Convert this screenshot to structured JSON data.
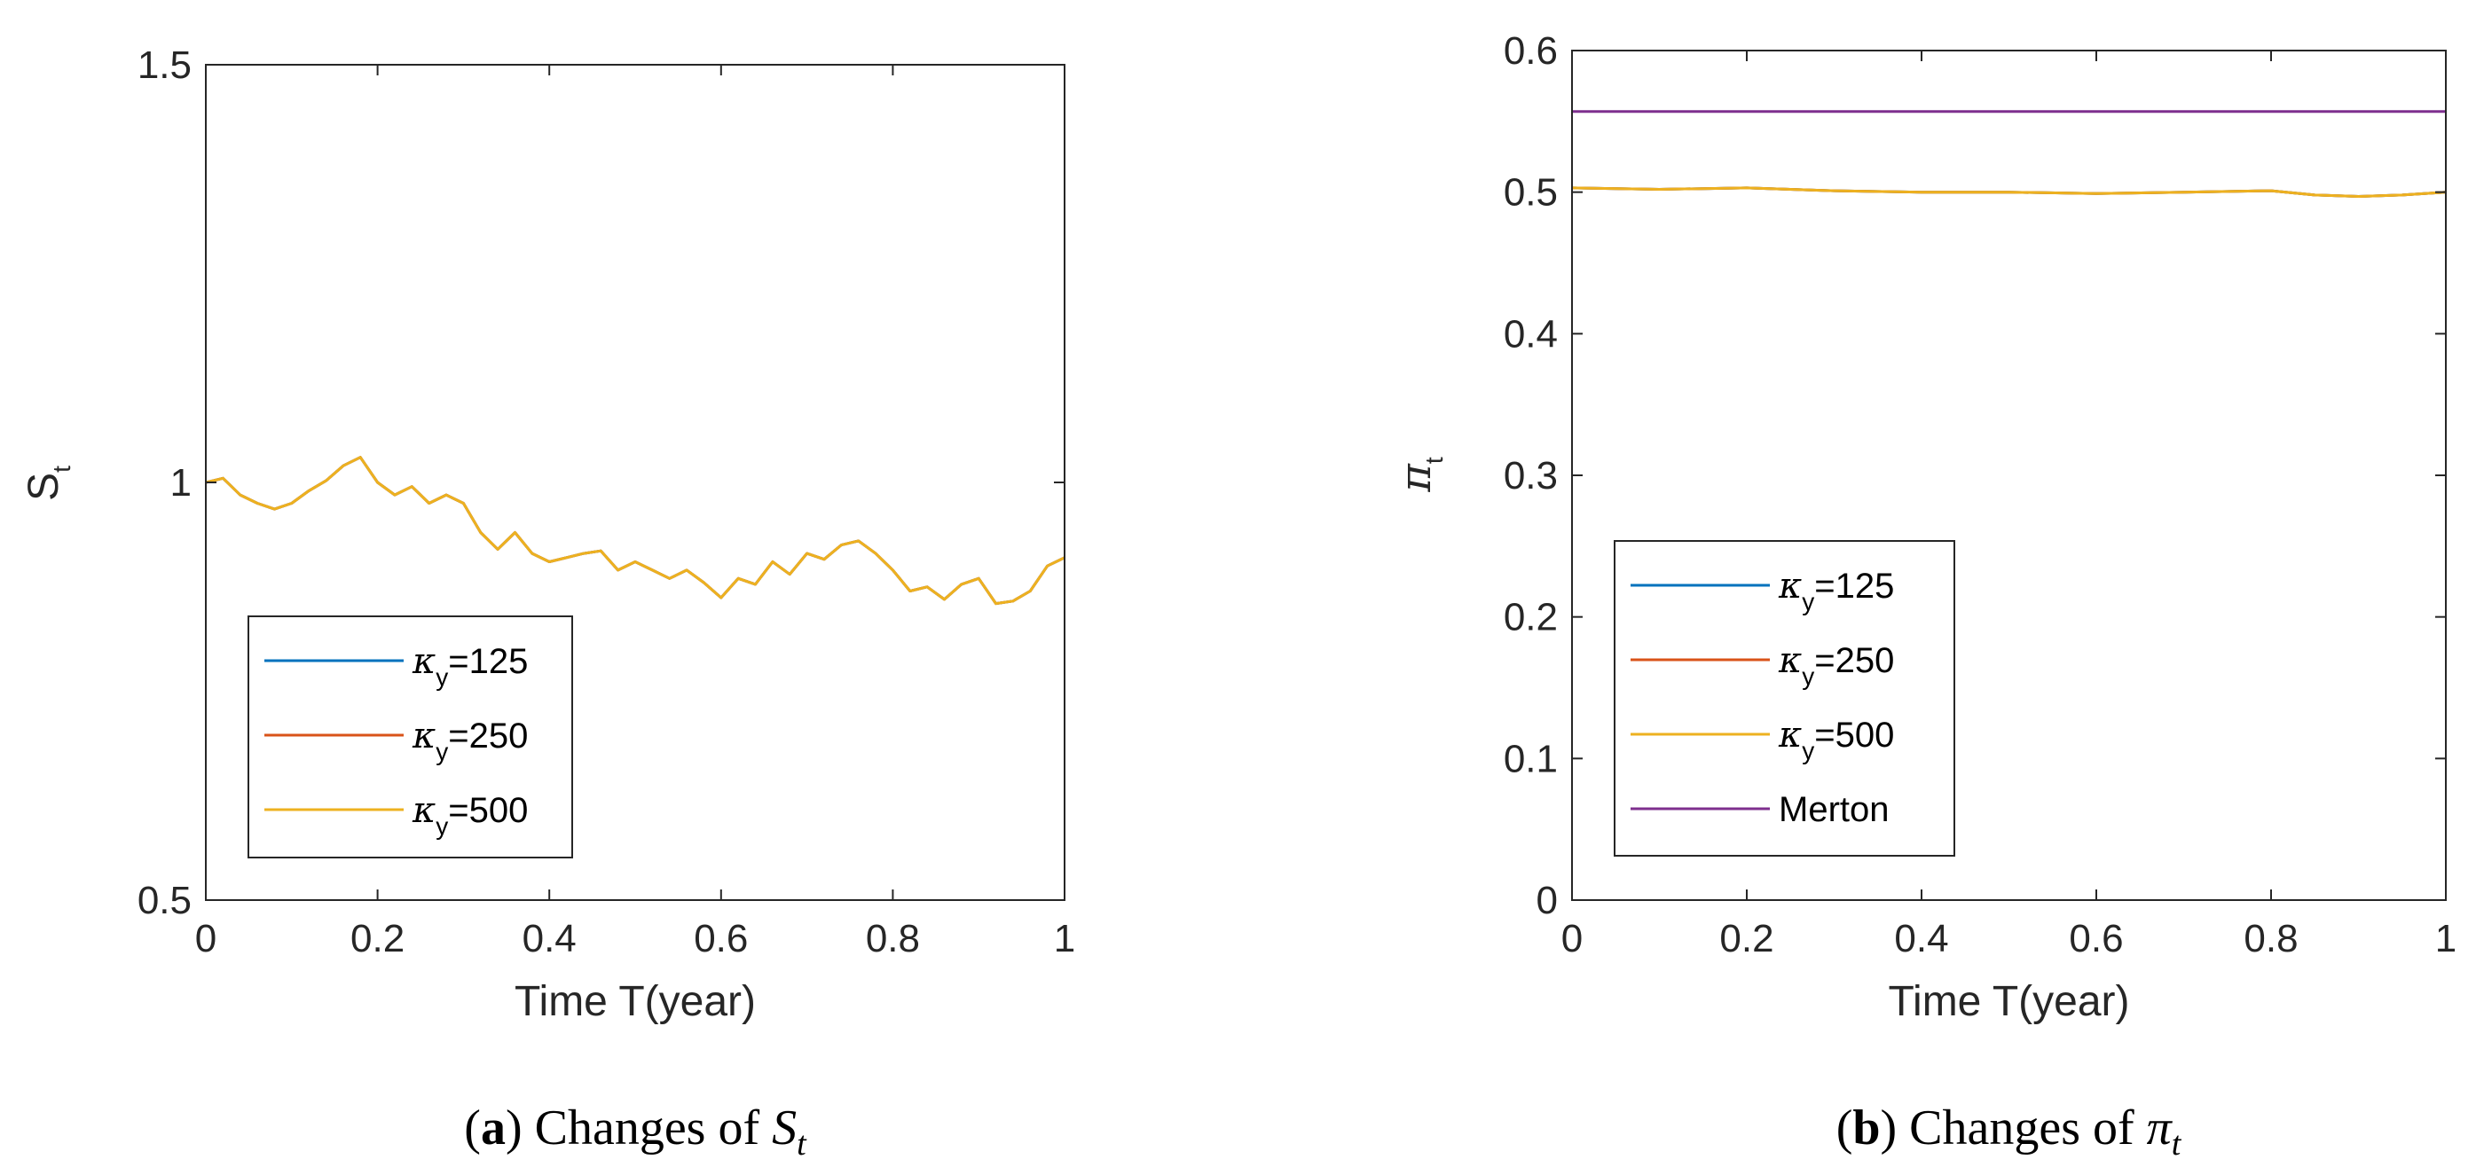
{
  "chart_data": [
    {
      "id": "a",
      "type": "line",
      "caption_tag": "a",
      "caption_text": "Changes of ",
      "caption_symbol": "S",
      "caption_sub": "t",
      "ylabel_main": "S",
      "ylabel_sub": "t",
      "xlabel": "Time T(year)",
      "xlim": [
        0,
        1
      ],
      "ylim": [
        0.5,
        1.5
      ],
      "xticks": [
        0,
        0.2,
        0.4,
        0.6,
        0.8,
        1
      ],
      "xtick_labels": [
        "0",
        "0.2",
        "0.4",
        "0.6",
        "0.8",
        "1"
      ],
      "yticks": [
        0.5,
        1,
        1.5
      ],
      "ytick_labels": [
        "0.5",
        "1",
        "1.5"
      ],
      "legend_position": "lower-left",
      "series": [
        {
          "name": "κy=125",
          "legend_greek": "κ",
          "legend_sub": "y",
          "legend_value": "=125",
          "color": "#0072bd",
          "x": [
            0,
            0.02,
            0.04,
            0.06,
            0.08,
            0.1,
            0.12,
            0.14,
            0.16,
            0.18,
            0.2,
            0.22,
            0.24,
            0.26,
            0.28,
            0.3,
            0.32,
            0.34,
            0.36,
            0.38,
            0.4,
            0.42,
            0.44,
            0.46,
            0.48,
            0.5,
            0.52,
            0.54,
            0.56,
            0.58,
            0.6,
            0.62,
            0.64,
            0.66,
            0.68,
            0.7,
            0.72,
            0.74,
            0.76,
            0.78,
            0.8,
            0.82,
            0.84,
            0.86,
            0.88,
            0.9,
            0.92,
            0.94,
            0.96,
            0.98,
            1
          ],
          "values": [
            1.0,
            1.005,
            0.985,
            0.975,
            0.968,
            0.975,
            0.99,
            1.002,
            1.02,
            1.03,
            1.0,
            0.985,
            0.995,
            0.975,
            0.985,
            0.975,
            0.94,
            0.92,
            0.94,
            0.915,
            0.905,
            0.91,
            0.915,
            0.918,
            0.895,
            0.905,
            0.895,
            0.885,
            0.895,
            0.88,
            0.862,
            0.885,
            0.878,
            0.905,
            0.89,
            0.915,
            0.908,
            0.925,
            0.93,
            0.915,
            0.895,
            0.87,
            0.875,
            0.86,
            0.878,
            0.885,
            0.855,
            0.858,
            0.87,
            0.9,
            0.91
          ]
        },
        {
          "name": "κy=250",
          "legend_greek": "κ",
          "legend_sub": "y",
          "legend_value": "=250",
          "color": "#d95319",
          "x": [
            0,
            0.02,
            0.04,
            0.06,
            0.08,
            0.1,
            0.12,
            0.14,
            0.16,
            0.18,
            0.2,
            0.22,
            0.24,
            0.26,
            0.28,
            0.3,
            0.32,
            0.34,
            0.36,
            0.38,
            0.4,
            0.42,
            0.44,
            0.46,
            0.48,
            0.5,
            0.52,
            0.54,
            0.56,
            0.58,
            0.6,
            0.62,
            0.64,
            0.66,
            0.68,
            0.7,
            0.72,
            0.74,
            0.76,
            0.78,
            0.8,
            0.82,
            0.84,
            0.86,
            0.88,
            0.9,
            0.92,
            0.94,
            0.96,
            0.98,
            1
          ],
          "values": [
            1.0,
            1.005,
            0.985,
            0.975,
            0.968,
            0.975,
            0.99,
            1.002,
            1.02,
            1.03,
            1.0,
            0.985,
            0.995,
            0.975,
            0.985,
            0.975,
            0.94,
            0.92,
            0.94,
            0.915,
            0.905,
            0.91,
            0.915,
            0.918,
            0.895,
            0.905,
            0.895,
            0.885,
            0.895,
            0.88,
            0.862,
            0.885,
            0.878,
            0.905,
            0.89,
            0.915,
            0.908,
            0.925,
            0.93,
            0.915,
            0.895,
            0.87,
            0.875,
            0.86,
            0.878,
            0.885,
            0.855,
            0.858,
            0.87,
            0.9,
            0.91
          ]
        },
        {
          "name": "κy=500",
          "legend_greek": "κ",
          "legend_sub": "y",
          "legend_value": "=500",
          "color": "#edb120",
          "x": [
            0,
            0.02,
            0.04,
            0.06,
            0.08,
            0.1,
            0.12,
            0.14,
            0.16,
            0.18,
            0.2,
            0.22,
            0.24,
            0.26,
            0.28,
            0.3,
            0.32,
            0.34,
            0.36,
            0.38,
            0.4,
            0.42,
            0.44,
            0.46,
            0.48,
            0.5,
            0.52,
            0.54,
            0.56,
            0.58,
            0.6,
            0.62,
            0.64,
            0.66,
            0.68,
            0.7,
            0.72,
            0.74,
            0.76,
            0.78,
            0.8,
            0.82,
            0.84,
            0.86,
            0.88,
            0.9,
            0.92,
            0.94,
            0.96,
            0.98,
            1
          ],
          "values": [
            1.0,
            1.005,
            0.985,
            0.975,
            0.968,
            0.975,
            0.99,
            1.002,
            1.02,
            1.03,
            1.0,
            0.985,
            0.995,
            0.975,
            0.985,
            0.975,
            0.94,
            0.92,
            0.94,
            0.915,
            0.905,
            0.91,
            0.915,
            0.918,
            0.895,
            0.905,
            0.895,
            0.885,
            0.895,
            0.88,
            0.862,
            0.885,
            0.878,
            0.905,
            0.89,
            0.915,
            0.908,
            0.925,
            0.93,
            0.915,
            0.895,
            0.87,
            0.875,
            0.86,
            0.878,
            0.885,
            0.855,
            0.858,
            0.87,
            0.9,
            0.91
          ]
        }
      ]
    },
    {
      "id": "b",
      "type": "line",
      "caption_tag": "b",
      "caption_text": "Changes of ",
      "caption_symbol": "π",
      "caption_sub": "t",
      "ylabel_main": "π",
      "ylabel_sub": "t",
      "xlabel": "Time T(year)",
      "xlim": [
        0,
        1
      ],
      "ylim": [
        0,
        0.6
      ],
      "xticks": [
        0,
        0.2,
        0.4,
        0.6,
        0.8,
        1
      ],
      "xtick_labels": [
        "0",
        "0.2",
        "0.4",
        "0.6",
        "0.8",
        "1"
      ],
      "yticks": [
        0,
        0.1,
        0.2,
        0.3,
        0.4,
        0.5,
        0.6
      ],
      "ytick_labels": [
        "0",
        "0.1",
        "0.2",
        "0.3",
        "0.4",
        "0.5",
        "0.6"
      ],
      "legend_position": "lower-left",
      "series": [
        {
          "name": "κy=125",
          "legend_greek": "κ",
          "legend_sub": "y",
          "legend_value": "=125",
          "color": "#0072bd",
          "x": [
            0,
            0.1,
            0.2,
            0.3,
            0.4,
            0.5,
            0.6,
            0.7,
            0.8,
            0.85,
            0.9,
            0.95,
            1
          ],
          "values": [
            0.503,
            0.502,
            0.503,
            0.501,
            0.5,
            0.5,
            0.499,
            0.5,
            0.501,
            0.498,
            0.497,
            0.498,
            0.5
          ]
        },
        {
          "name": "κy=250",
          "legend_greek": "κ",
          "legend_sub": "y",
          "legend_value": "=250",
          "color": "#d95319",
          "x": [
            0,
            0.1,
            0.2,
            0.3,
            0.4,
            0.5,
            0.6,
            0.7,
            0.8,
            0.85,
            0.9,
            0.95,
            1
          ],
          "values": [
            0.503,
            0.502,
            0.503,
            0.501,
            0.5,
            0.5,
            0.499,
            0.5,
            0.501,
            0.498,
            0.497,
            0.498,
            0.5
          ]
        },
        {
          "name": "κy=500",
          "legend_greek": "κ",
          "legend_sub": "y",
          "legend_value": "=500",
          "color": "#edb120",
          "x": [
            0,
            0.1,
            0.2,
            0.3,
            0.4,
            0.5,
            0.6,
            0.7,
            0.8,
            0.85,
            0.9,
            0.95,
            1
          ],
          "values": [
            0.503,
            0.502,
            0.503,
            0.501,
            0.5,
            0.5,
            0.499,
            0.5,
            0.501,
            0.498,
            0.497,
            0.498,
            0.5
          ]
        },
        {
          "name": "Merton",
          "legend_greek": "",
          "legend_sub": "",
          "legend_value": "Merton",
          "color": "#7e2f8e",
          "x": [
            0,
            1
          ],
          "values": [
            0.557,
            0.557
          ]
        }
      ]
    }
  ]
}
